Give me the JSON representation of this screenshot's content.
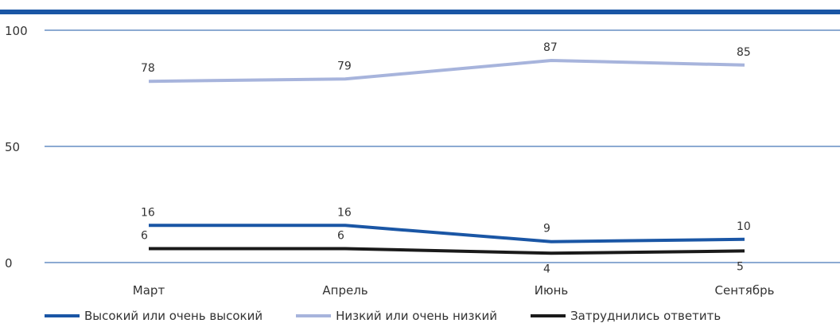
{
  "chart_data": {
    "type": "line",
    "categories": [
      "Март",
      "Апрель",
      "Июнь",
      "Сентябрь"
    ],
    "series": [
      {
        "name": "Высокий или очень высокий",
        "values": [
          16,
          16,
          9,
          10
        ],
        "color": "#1a56a5"
      },
      {
        "name": "Низкий или очень низкий",
        "values": [
          78,
          79,
          87,
          85
        ],
        "color": "#a7b4dc"
      },
      {
        "name": "Затруднились ответить",
        "values": [
          6,
          6,
          4,
          5
        ],
        "color": "#1a1a1a"
      }
    ],
    "ylim": [
      0,
      100
    ],
    "yticks": [
      0,
      50,
      100
    ],
    "grid": true,
    "legend_position": "bottom",
    "top_bar_color": "#1a56a5",
    "gridline_color": "#1a56a5"
  }
}
